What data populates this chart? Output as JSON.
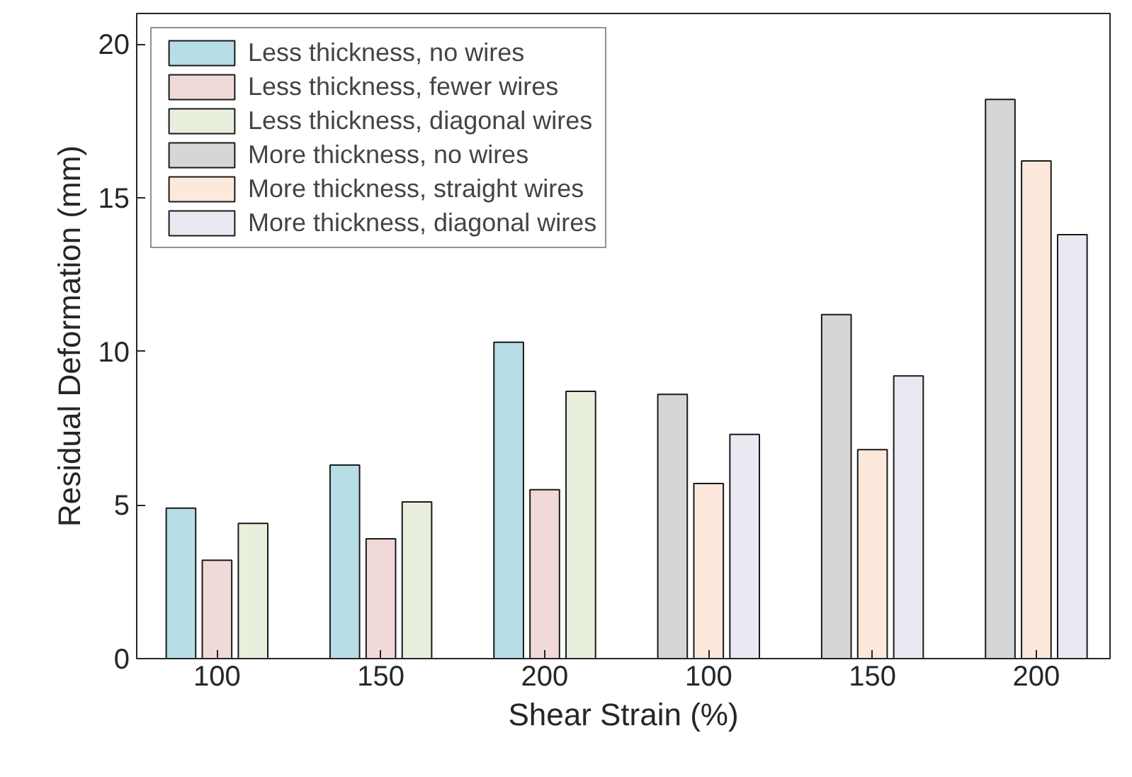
{
  "chart_data": {
    "type": "bar",
    "xlabel": "Shear Strain (%)",
    "ylabel": "Residual Deformation (mm)",
    "categories": [
      "100",
      "150",
      "200",
      "100",
      "150",
      "200"
    ],
    "series": [
      {
        "name": "Less thickness, no wires",
        "color": "#b7dde6",
        "values": [
          4.9,
          6.3,
          10.3,
          null,
          null,
          null
        ]
      },
      {
        "name": "Less thickness, fewer wires",
        "color": "#f0d9d8",
        "values": [
          3.2,
          3.9,
          5.5,
          null,
          null,
          null
        ]
      },
      {
        "name": "Less thickness, diagonal wires",
        "color": "#e8efdd",
        "values": [
          4.4,
          5.1,
          8.7,
          null,
          null,
          null
        ]
      },
      {
        "name": "More thickness, no wires",
        "color": "#d6d6d6",
        "values": [
          null,
          null,
          null,
          8.6,
          11.2,
          18.2
        ]
      },
      {
        "name": "More thickness, straight wires",
        "color": "#fce9dc",
        "values": [
          null,
          null,
          null,
          5.7,
          6.8,
          16.2
        ]
      },
      {
        "name": "More thickness, diagonal wires",
        "color": "#eae8f0",
        "values": [
          null,
          null,
          null,
          7.3,
          9.2,
          13.8
        ]
      }
    ],
    "ylim": [
      0,
      21
    ],
    "yticks": [
      0,
      5,
      10,
      15,
      20
    ],
    "grid": false,
    "legend": "top left"
  }
}
